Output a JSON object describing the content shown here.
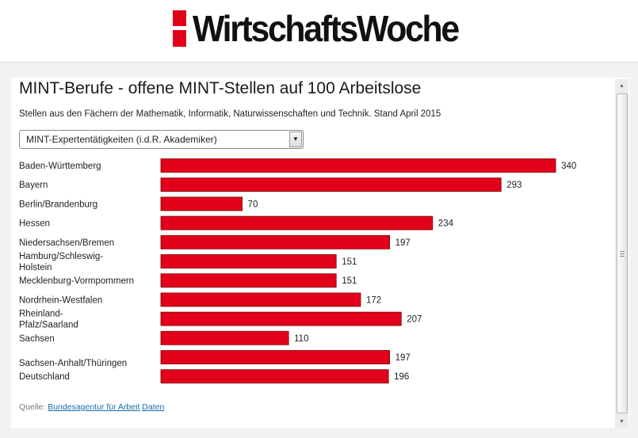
{
  "header": {
    "logo_text": "WirtschaftsWoche"
  },
  "title": "MINT-Berufe - offene MINT-Stellen auf 100 Arbeitslose",
  "subtitle": "Stellen aus den Fächern der Mathematik, Informatik, Naturwissenschaften und Technik. Stand April 2015",
  "dropdown": {
    "selected": "MINT-Expertentätigkeiten (i.d.R. Akademiker)"
  },
  "source": {
    "prefix": "Quelle:",
    "link1": "Bundesagentur für Arbeit",
    "link2": "Daten"
  },
  "colors": {
    "bar": "#e2001a",
    "bar_border": "#7a0000"
  },
  "chart_data": {
    "type": "bar",
    "orientation": "horizontal",
    "categories": [
      "Baden-Württemberg",
      "Bayern",
      "Berlin/Brandenburg",
      "Hessen",
      "Niedersachsen/Bremen",
      "Hamburg/Schleswig-Holstein",
      "Mecklenburg-Vormpommern",
      "Nordrhein-Westfalen",
      "Rheinland-Pfalz/Saarland",
      "Sachsen",
      "Sachsen-Anhalt/Thüringen",
      "Deutschland"
    ],
    "values": [
      340,
      293,
      70,
      234,
      197,
      151,
      151,
      172,
      207,
      110,
      197,
      196
    ],
    "data_labels": true,
    "grid": false,
    "legend": "none"
  }
}
